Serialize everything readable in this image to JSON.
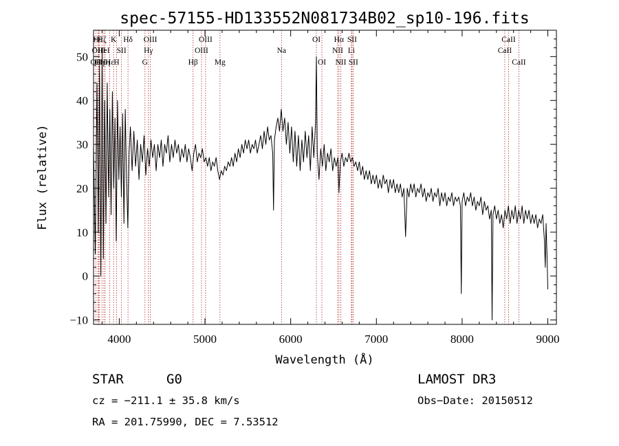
{
  "chart_data": {
    "type": "line",
    "title": "spec-57155-HD133552N081734B02_sp10-196.fits",
    "xlabel": "Wavelength (Å)",
    "ylabel": "Flux (relative)",
    "xlim": [
      3700,
      9100
    ],
    "ylim": [
      -11,
      56
    ],
    "x_ticks": [
      4000,
      5000,
      6000,
      7000,
      8000,
      9000
    ],
    "x_tick_labels": [
      "4000",
      "5000",
      "6000",
      "7000",
      "8000",
      "9000"
    ],
    "y_ticks": [
      -10,
      0,
      10,
      20,
      30,
      40,
      50
    ],
    "y_tick_labels": [
      "−10",
      "0",
      "10",
      "20",
      "30",
      "40",
      "50"
    ],
    "line_color": "#000000",
    "marker_color": "#b22222",
    "series": [
      {
        "name": "flux",
        "points": [
          [
            3700,
            30
          ],
          [
            3720,
            5
          ],
          [
            3740,
            44
          ],
          [
            3755,
            10
          ],
          [
            3770,
            48
          ],
          [
            3785,
            0
          ],
          [
            3800,
            52
          ],
          [
            3815,
            4
          ],
          [
            3830,
            40
          ],
          [
            3845,
            12
          ],
          [
            3860,
            44
          ],
          [
            3875,
            18
          ],
          [
            3890,
            38
          ],
          [
            3905,
            14
          ],
          [
            3920,
            42
          ],
          [
            3935,
            20
          ],
          [
            3950,
            36
          ],
          [
            3965,
            8
          ],
          [
            3980,
            40
          ],
          [
            3995,
            22
          ],
          [
            4010,
            34
          ],
          [
            4025,
            18
          ],
          [
            4040,
            37
          ],
          [
            4055,
            12
          ],
          [
            4070,
            38
          ],
          [
            4085,
            22
          ],
          [
            4100,
            11
          ],
          [
            4115,
            28
          ],
          [
            4130,
            34
          ],
          [
            4150,
            24
          ],
          [
            4170,
            33
          ],
          [
            4190,
            25
          ],
          [
            4210,
            31
          ],
          [
            4230,
            22
          ],
          [
            4250,
            30
          ],
          [
            4270,
            26
          ],
          [
            4290,
            32
          ],
          [
            4310,
            23
          ],
          [
            4330,
            29
          ],
          [
            4350,
            25
          ],
          [
            4370,
            31
          ],
          [
            4390,
            27
          ],
          [
            4410,
            30
          ],
          [
            4430,
            24
          ],
          [
            4450,
            30
          ],
          [
            4470,
            27
          ],
          [
            4490,
            31
          ],
          [
            4510,
            25
          ],
          [
            4530,
            30
          ],
          [
            4550,
            28
          ],
          [
            4570,
            32
          ],
          [
            4590,
            26
          ],
          [
            4610,
            30
          ],
          [
            4630,
            27
          ],
          [
            4650,
            31
          ],
          [
            4670,
            28
          ],
          [
            4690,
            30
          ],
          [
            4710,
            26
          ],
          [
            4730,
            29
          ],
          [
            4750,
            27
          ],
          [
            4770,
            30
          ],
          [
            4790,
            26
          ],
          [
            4810,
            29
          ],
          [
            4830,
            27
          ],
          [
            4850,
            24
          ],
          [
            4870,
            28
          ],
          [
            4890,
            30
          ],
          [
            4910,
            26
          ],
          [
            4930,
            28
          ],
          [
            4950,
            27
          ],
          [
            4970,
            29
          ],
          [
            4990,
            26
          ],
          [
            5010,
            27
          ],
          [
            5030,
            25
          ],
          [
            5050,
            27
          ],
          [
            5070,
            24
          ],
          [
            5090,
            26
          ],
          [
            5110,
            25
          ],
          [
            5130,
            27
          ],
          [
            5150,
            24
          ],
          [
            5170,
            22
          ],
          [
            5190,
            24
          ],
          [
            5210,
            23
          ],
          [
            5230,
            25
          ],
          [
            5250,
            24
          ],
          [
            5270,
            26
          ],
          [
            5290,
            25
          ],
          [
            5310,
            27
          ],
          [
            5330,
            25
          ],
          [
            5350,
            28
          ],
          [
            5370,
            26
          ],
          [
            5390,
            29
          ],
          [
            5410,
            27
          ],
          [
            5430,
            30
          ],
          [
            5450,
            28
          ],
          [
            5470,
            31
          ],
          [
            5490,
            29
          ],
          [
            5510,
            31
          ],
          [
            5530,
            28
          ],
          [
            5550,
            30
          ],
          [
            5570,
            29
          ],
          [
            5590,
            31
          ],
          [
            5610,
            28
          ],
          [
            5630,
            30
          ],
          [
            5650,
            32
          ],
          [
            5670,
            29
          ],
          [
            5690,
            33
          ],
          [
            5710,
            30
          ],
          [
            5730,
            34
          ],
          [
            5750,
            31
          ],
          [
            5770,
            32
          ],
          [
            5790,
            28
          ],
          [
            5800,
            15
          ],
          [
            5810,
            31
          ],
          [
            5830,
            34
          ],
          [
            5850,
            36
          ],
          [
            5870,
            33
          ],
          [
            5890,
            38
          ],
          [
            5910,
            33
          ],
          [
            5930,
            36
          ],
          [
            5950,
            30
          ],
          [
            5970,
            35
          ],
          [
            5990,
            28
          ],
          [
            6010,
            34
          ],
          [
            6030,
            26
          ],
          [
            6050,
            33
          ],
          [
            6070,
            25
          ],
          [
            6090,
            32
          ],
          [
            6110,
            24
          ],
          [
            6130,
            31
          ],
          [
            6150,
            26
          ],
          [
            6170,
            33
          ],
          [
            6190,
            27
          ],
          [
            6210,
            32
          ],
          [
            6230,
            24
          ],
          [
            6250,
            34
          ],
          [
            6270,
            27
          ],
          [
            6290,
            35
          ],
          [
            6300,
            50
          ],
          [
            6310,
            28
          ],
          [
            6330,
            22
          ],
          [
            6350,
            29
          ],
          [
            6370,
            25
          ],
          [
            6390,
            30
          ],
          [
            6410,
            24
          ],
          [
            6430,
            28
          ],
          [
            6450,
            26
          ],
          [
            6470,
            29
          ],
          [
            6490,
            24
          ],
          [
            6510,
            27
          ],
          [
            6530,
            25
          ],
          [
            6550,
            27
          ],
          [
            6563,
            19
          ],
          [
            6580,
            26
          ],
          [
            6600,
            28
          ],
          [
            6620,
            25
          ],
          [
            6640,
            27
          ],
          [
            6660,
            26
          ],
          [
            6680,
            28
          ],
          [
            6700,
            26
          ],
          [
            6720,
            27
          ],
          [
            6740,
            25
          ],
          [
            6760,
            26
          ],
          [
            6780,
            24
          ],
          [
            6800,
            26
          ],
          [
            6820,
            23
          ],
          [
            6840,
            25
          ],
          [
            6860,
            22
          ],
          [
            6880,
            24
          ],
          [
            6900,
            22
          ],
          [
            6920,
            24
          ],
          [
            6940,
            21
          ],
          [
            6960,
            23
          ],
          [
            6980,
            21
          ],
          [
            7000,
            23
          ],
          [
            7020,
            20
          ],
          [
            7040,
            22
          ],
          [
            7060,
            20
          ],
          [
            7080,
            23
          ],
          [
            7100,
            21
          ],
          [
            7120,
            22
          ],
          [
            7140,
            19
          ],
          [
            7160,
            22
          ],
          [
            7180,
            20
          ],
          [
            7200,
            22
          ],
          [
            7220,
            19
          ],
          [
            7240,
            21
          ],
          [
            7260,
            19
          ],
          [
            7280,
            21
          ],
          [
            7300,
            18
          ],
          [
            7320,
            20
          ],
          [
            7340,
            9
          ],
          [
            7360,
            20
          ],
          [
            7380,
            18
          ],
          [
            7400,
            21
          ],
          [
            7420,
            19
          ],
          [
            7440,
            21
          ],
          [
            7460,
            18
          ],
          [
            7480,
            20
          ],
          [
            7500,
            19
          ],
          [
            7520,
            21
          ],
          [
            7540,
            18
          ],
          [
            7560,
            20
          ],
          [
            7580,
            17
          ],
          [
            7600,
            19
          ],
          [
            7620,
            18
          ],
          [
            7640,
            20
          ],
          [
            7660,
            17
          ],
          [
            7680,
            19
          ],
          [
            7700,
            18
          ],
          [
            7720,
            20
          ],
          [
            7740,
            16
          ],
          [
            7760,
            19
          ],
          [
            7780,
            17
          ],
          [
            7800,
            19
          ],
          [
            7820,
            16
          ],
          [
            7840,
            18
          ],
          [
            7860,
            17
          ],
          [
            7880,
            19
          ],
          [
            7900,
            16
          ],
          [
            7920,
            18
          ],
          [
            7940,
            17
          ],
          [
            7960,
            18
          ],
          [
            7980,
            16
          ],
          [
            7990,
            -4
          ],
          [
            8000,
            17
          ],
          [
            8020,
            19
          ],
          [
            8040,
            16
          ],
          [
            8060,
            18
          ],
          [
            8080,
            17
          ],
          [
            8100,
            19
          ],
          [
            8120,
            16
          ],
          [
            8140,
            18
          ],
          [
            8160,
            15
          ],
          [
            8180,
            17
          ],
          [
            8200,
            16
          ],
          [
            8220,
            18
          ],
          [
            8240,
            14
          ],
          [
            8260,
            17
          ],
          [
            8280,
            15
          ],
          [
            8300,
            16
          ],
          [
            8320,
            13
          ],
          [
            8340,
            15
          ],
          [
            8350,
            -10
          ],
          [
            8360,
            14
          ],
          [
            8380,
            16
          ],
          [
            8400,
            13
          ],
          [
            8420,
            15
          ],
          [
            8440,
            12
          ],
          [
            8460,
            14
          ],
          [
            8480,
            11
          ],
          [
            8500,
            15
          ],
          [
            8520,
            13
          ],
          [
            8540,
            16
          ],
          [
            8560,
            12
          ],
          [
            8580,
            15
          ],
          [
            8600,
            13
          ],
          [
            8620,
            16
          ],
          [
            8640,
            12
          ],
          [
            8660,
            15
          ],
          [
            8680,
            13
          ],
          [
            8700,
            16
          ],
          [
            8720,
            12
          ],
          [
            8740,
            15
          ],
          [
            8760,
            13
          ],
          [
            8780,
            15
          ],
          [
            8800,
            12
          ],
          [
            8820,
            14
          ],
          [
            8840,
            12
          ],
          [
            8860,
            14
          ],
          [
            8880,
            11
          ],
          [
            8900,
            13
          ],
          [
            8920,
            12
          ],
          [
            8940,
            14
          ],
          [
            8960,
            8
          ],
          [
            8970,
            2
          ],
          [
            8980,
            12
          ],
          [
            8990,
            5
          ],
          [
            9000,
            -3
          ]
        ]
      }
    ],
    "line_markers": [
      {
        "wavelength": 3727,
        "label": "OII",
        "row": 2
      },
      {
        "wavelength": 3750,
        "label": "Hθ",
        "row": 0
      },
      {
        "wavelength": 3760,
        "label": "OIII",
        "row": 1
      },
      {
        "wavelength": 3771,
        "label": "Hη",
        "row": 2
      },
      {
        "wavelength": 3798,
        "label": "Hζ",
        "row": 0
      },
      {
        "wavelength": 3820,
        "label": "HeI",
        "row": 1
      },
      {
        "wavelength": 3835,
        "label": "Hη",
        "row": 2
      },
      {
        "wavelength": 3889,
        "label": "Hε",
        "row": 2
      },
      {
        "wavelength": 3934,
        "label": "K",
        "row": 0
      },
      {
        "wavelength": 3969,
        "label": "H",
        "row": 2
      },
      {
        "wavelength": 4026,
        "label": "SII",
        "row": 1
      },
      {
        "wavelength": 4102,
        "label": "Hδ",
        "row": 0
      },
      {
        "wavelength": 4300,
        "label": "G",
        "row": 2
      },
      {
        "wavelength": 4340,
        "label": "Hγ",
        "row": 1
      },
      {
        "wavelength": 4363,
        "label": "OIII",
        "row": 0
      },
      {
        "wavelength": 4861,
        "label": "Hβ",
        "row": 2
      },
      {
        "wavelength": 4959,
        "label": "OIII",
        "row": 1
      },
      {
        "wavelength": 5007,
        "label": "OIII",
        "row": 0
      },
      {
        "wavelength": 5175,
        "label": "Mg",
        "row": 2
      },
      {
        "wavelength": 5893,
        "label": "Na",
        "row": 1
      },
      {
        "wavelength": 6300,
        "label": "OI",
        "row": 0
      },
      {
        "wavelength": 6364,
        "label": "OI",
        "row": 2
      },
      {
        "wavelength": 6548,
        "label": "NII",
        "row": 1
      },
      {
        "wavelength": 6563,
        "label": "Hα",
        "row": 0
      },
      {
        "wavelength": 6584,
        "label": "NII",
        "row": 2
      },
      {
        "wavelength": 6708,
        "label": "Li",
        "row": 1
      },
      {
        "wavelength": 6716,
        "label": "SII",
        "row": 0
      },
      {
        "wavelength": 6731,
        "label": "SII",
        "row": 2
      },
      {
        "wavelength": 8498,
        "label": "CaII",
        "row": 1
      },
      {
        "wavelength": 8542,
        "label": "CaII",
        "row": 0
      },
      {
        "wavelength": 8662,
        "label": "CaII",
        "row": 2
      }
    ]
  },
  "info": {
    "object_class": "STAR",
    "subclass": "G0",
    "survey": "LAMOST DR3",
    "cz": "cz = −211.1 ± 35.8 km/s",
    "obs_date": "Obs−Date: 20150512",
    "coords": "RA = 201.75990, DEC =   7.53512"
  }
}
